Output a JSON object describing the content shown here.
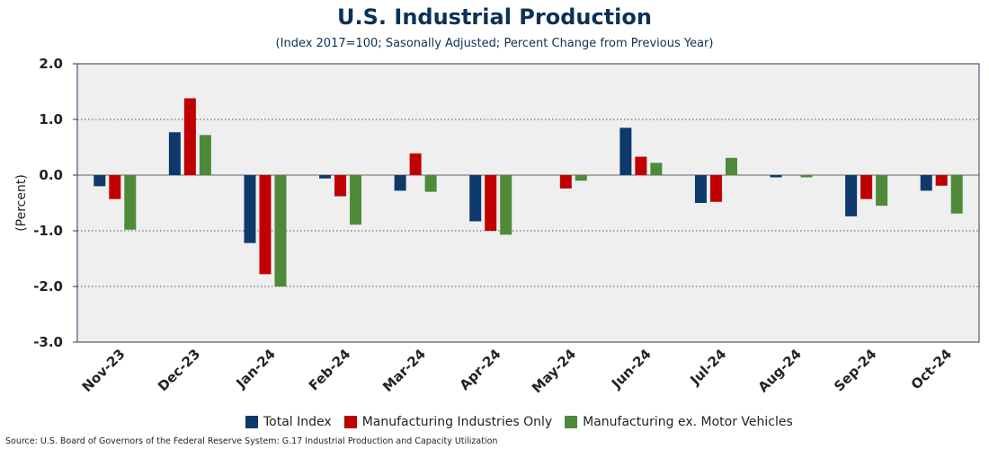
{
  "title": "U.S. Industrial Production",
  "subtitle": "(Index 2017=100; Sasonally Adjusted; Percent Change from Previous Year)",
  "source": "Source: U.S. Board of Governors of the Federal Reserve System: G.17 Industrial Production and Capacity Utilization",
  "chart_data": {
    "type": "bar",
    "title": "U.S. Industrial Production",
    "subtitle": "(Index 2017=100; Sasonally Adjusted; Percent Change from Previous Year)",
    "ylabel": "(Percent)",
    "xlabel": "",
    "ylim": [
      -3.0,
      2.0
    ],
    "yticks": [
      "2.0",
      "1.0",
      "0.0",
      "-1.0",
      "-2.0",
      "-3.0"
    ],
    "grid": true,
    "legend_position": "bottom",
    "categories": [
      "Nov-23",
      "Dec-23",
      "Jan-24",
      "Feb-24",
      "Mar-24",
      "Apr-24",
      "May-24",
      "Jun-24",
      "Jul-24",
      "Aug-24",
      "Sep-24",
      "Oct-24"
    ],
    "series": [
      {
        "name": "Total Index",
        "color": "#0d3a6b",
        "values": [
          -0.2,
          0.77,
          -1.22,
          -0.06,
          -0.28,
          -0.83,
          0.0,
          0.85,
          -0.5,
          -0.04,
          -0.74,
          -0.28
        ]
      },
      {
        "name": "Manufacturing Industries Only",
        "color": "#c00000",
        "values": [
          -0.43,
          1.38,
          -1.78,
          -0.38,
          0.39,
          -1.0,
          -0.24,
          0.33,
          -0.48,
          0.0,
          -0.43,
          -0.19
        ]
      },
      {
        "name": "Manufacturing ex. Motor Vehicles",
        "color": "#4e8a3a",
        "values": [
          -0.98,
          0.72,
          -2.0,
          -0.89,
          -0.3,
          -1.07,
          -0.1,
          0.22,
          0.31,
          -0.04,
          -0.55,
          -0.69
        ]
      }
    ]
  }
}
